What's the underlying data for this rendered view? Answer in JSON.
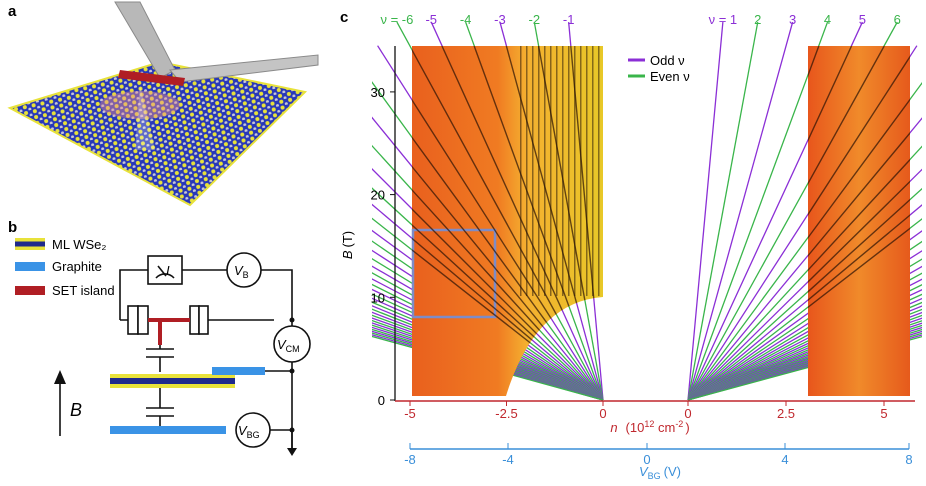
{
  "panel_labels": [
    "a",
    "b",
    "c"
  ],
  "panel_b": {
    "legend": [
      "ML WSe₂",
      "Graphite",
      "SET island"
    ],
    "current": "I",
    "sources": [
      {
        "main": "V",
        "sub": "B"
      },
      {
        "main": "V",
        "sub": "CM"
      },
      {
        "main": "V",
        "sub": "BG"
      }
    ],
    "field": "B"
  },
  "panel_c": {
    "hole_labels": [
      "ν = -6",
      "-5",
      "-4",
      "-3",
      "-2",
      "-1"
    ],
    "electron_labels": [
      "ν = 1",
      "2",
      "3",
      "4",
      "5",
      "6"
    ],
    "legend": [
      "Odd ν",
      "Even ν"
    ],
    "y_label": {
      "main": "B",
      "unit": "(T)"
    },
    "y_ticks": [
      "0",
      "10",
      "20",
      "30"
    ],
    "n_ticks": [
      "-5",
      "-2.5",
      "0",
      "0",
      "2.5",
      "5"
    ],
    "n_label": [
      "n",
      "(10",
      "12",
      " cm",
      "-2",
      ")"
    ],
    "vbg_ticks": [
      "-8",
      "-4",
      "0",
      "4",
      "8"
    ],
    "vbg_label": {
      "main": "V",
      "sub": "BG",
      "unit": "(V)"
    }
  }
}
